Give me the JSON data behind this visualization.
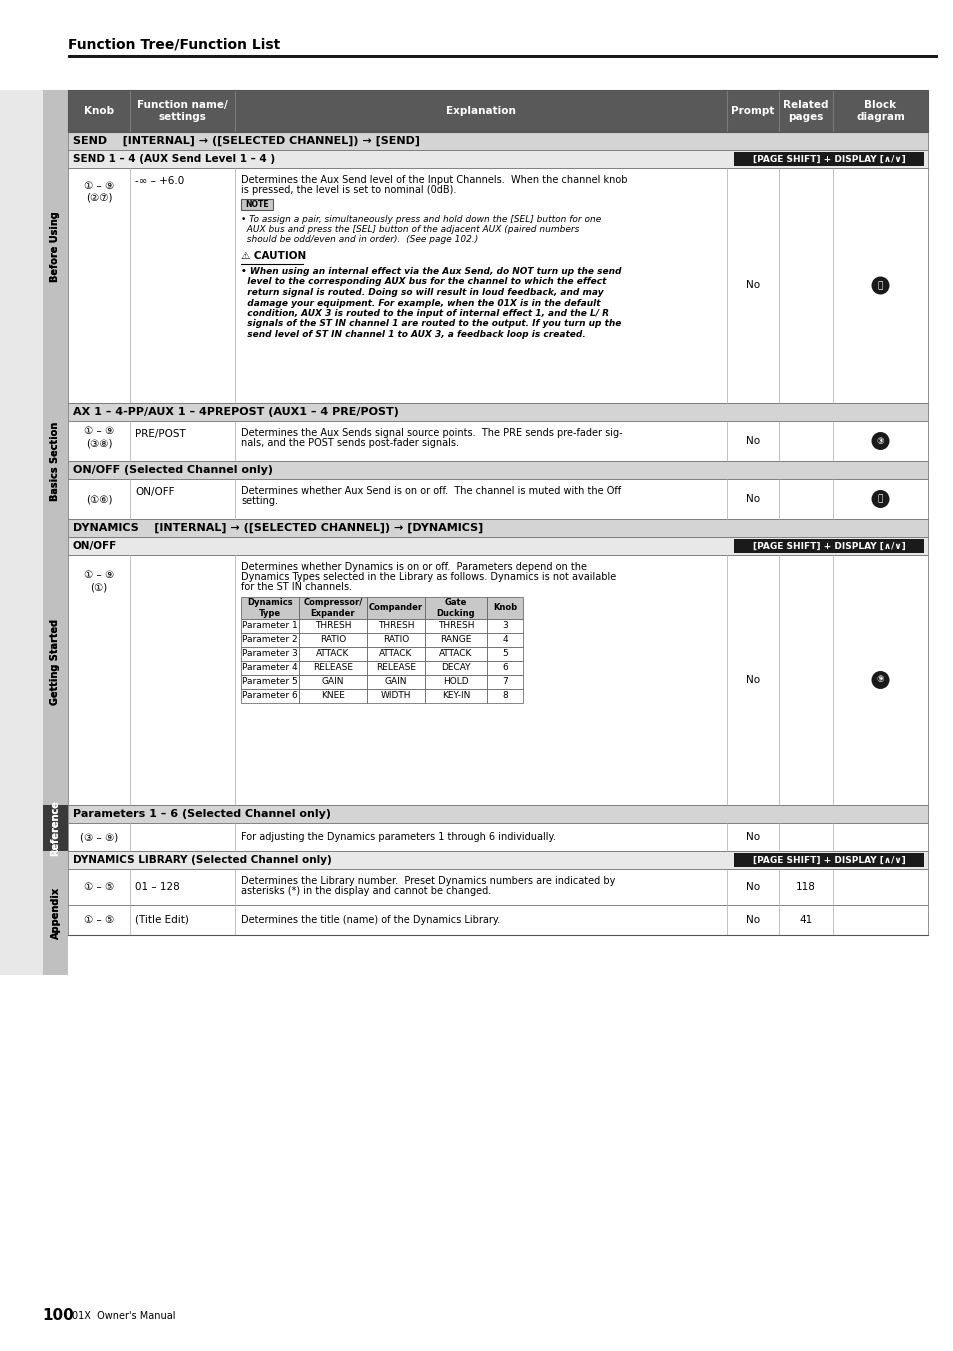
{
  "title": "Function Tree/Function List",
  "page_number": "100",
  "page_label": "01X  Owner's Manual",
  "bg_color": "#ffffff",
  "header_row_color": "#595959",
  "section_row_color": "#d4d4d4",
  "subheader_row_color": "#f0f0f0",
  "data_row_color": "#ffffff",
  "inner_table_header_color": "#c8c8c8",
  "tag_color": "#1a1a1a",
  "sidebar_light": "#c8c8c8",
  "sidebar_dark": "#3a3a3a",
  "sidebar_sections": [
    {
      "label": "Before Using",
      "dark": false
    },
    {
      "label": "Basics Section",
      "dark": false
    },
    {
      "label": "Getting Started",
      "dark": false
    },
    {
      "label": "Reference",
      "dark": true
    },
    {
      "label": "Appendix",
      "dark": false
    }
  ]
}
